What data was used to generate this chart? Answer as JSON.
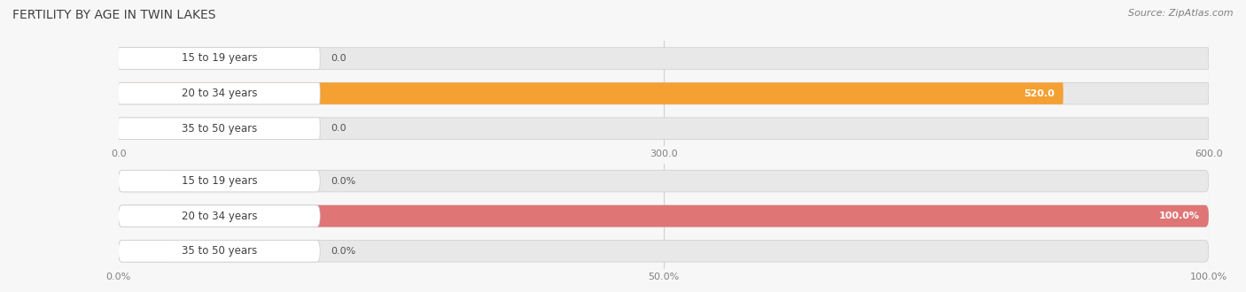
{
  "title": "FERTILITY BY AGE IN TWIN LAKES",
  "source": "Source: ZipAtlas.com",
  "top_chart": {
    "categories": [
      "15 to 19 years",
      "20 to 34 years",
      "35 to 50 years"
    ],
    "values": [
      0.0,
      520.0,
      0.0
    ],
    "xlim": [
      0,
      600
    ],
    "xticks": [
      0.0,
      300.0,
      600.0
    ],
    "xtick_labels": [
      "0.0",
      "300.0",
      "600.0"
    ],
    "bar_color_full": "#f5a033",
    "bar_color_empty": "#f5c896",
    "bar_bg_color": "#e8e8e8",
    "label_values": [
      "0.0",
      "520.0",
      "0.0"
    ]
  },
  "bottom_chart": {
    "categories": [
      "15 to 19 years",
      "20 to 34 years",
      "35 to 50 years"
    ],
    "values": [
      0.0,
      100.0,
      0.0
    ],
    "xlim": [
      0,
      100
    ],
    "xticks": [
      0.0,
      50.0,
      100.0
    ],
    "xtick_labels": [
      "0.0%",
      "50.0%",
      "100.0%"
    ],
    "bar_color_full": "#e07575",
    "bar_color_empty": "#f0b8b8",
    "bar_bg_color": "#e8e8e8",
    "label_values": [
      "0.0%",
      "100.0%",
      "0.0%"
    ]
  },
  "title_fontsize": 10,
  "source_fontsize": 8,
  "label_fontsize": 8,
  "category_fontsize": 8.5,
  "tick_fontsize": 8,
  "bar_height": 0.62,
  "fig_bg_color": "#f7f7f7",
  "title_color": "#404040",
  "source_color": "#808080",
  "tick_color": "#808080",
  "category_color": "#404040",
  "label_color_inside": "#ffffff",
  "label_color_outside": "#505050",
  "grid_color": "#d0d0d0"
}
